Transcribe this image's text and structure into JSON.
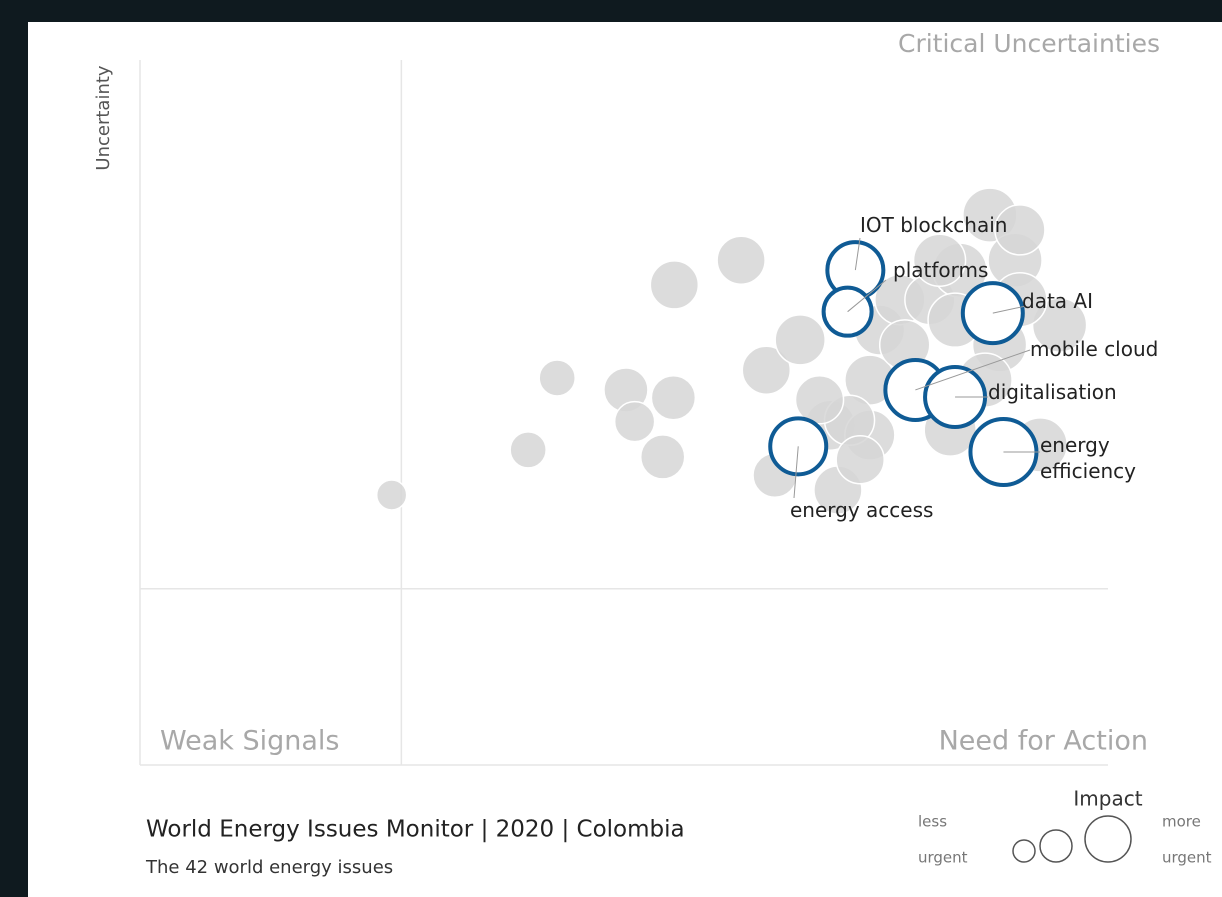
{
  "chart_data": {
    "type": "bubble",
    "title": "World Energy Issues Monitor | 2020 | Colombia",
    "subtitle": "The 42 world energy issues",
    "y_label": "Uncertainty",
    "quadrants": {
      "top_right": "Critical Uncertainties",
      "bottom_left": "Weak Signals",
      "bottom_right": "Need for Action"
    },
    "size_legend": {
      "title": "Impact",
      "low": [
        "less",
        "urgent"
      ],
      "high": [
        "more",
        "urgent"
      ]
    },
    "xlim": [
      0,
      100
    ],
    "ylim": [
      0,
      100
    ],
    "quadrant_lines": {
      "x": 27,
      "y": 25
    },
    "colors": {
      "default": "#d6d6d6",
      "highlight": "#0f5b95"
    },
    "points": [
      {
        "x": 26.0,
        "y": 38.3,
        "size": 15
      },
      {
        "x": 40.1,
        "y": 44.7,
        "size": 18
      },
      {
        "x": 43.1,
        "y": 54.9,
        "size": 18
      },
      {
        "x": 50.2,
        "y": 53.2,
        "size": 22
      },
      {
        "x": 51.1,
        "y": 48.7,
        "size": 20
      },
      {
        "x": 55.1,
        "y": 52.1,
        "size": 22
      },
      {
        "x": 54.0,
        "y": 43.7,
        "size": 22
      },
      {
        "x": 55.2,
        "y": 68.1,
        "size": 24
      },
      {
        "x": 62.1,
        "y": 71.6,
        "size": 24
      },
      {
        "x": 64.7,
        "y": 56.0,
        "size": 24
      },
      {
        "x": 68.2,
        "y": 60.3,
        "size": 25
      },
      {
        "x": 65.6,
        "y": 41.1,
        "size": 22
      },
      {
        "x": 71.3,
        "y": 48.2,
        "size": 25
      },
      {
        "x": 72.1,
        "y": 39.0,
        "size": 24
      },
      {
        "x": 75.4,
        "y": 46.8,
        "size": 25
      },
      {
        "x": 76.4,
        "y": 61.7,
        "size": 25
      },
      {
        "x": 78.5,
        "y": 66.0,
        "size": 25
      },
      {
        "x": 81.6,
        "y": 66.0,
        "size": 25
      },
      {
        "x": 84.7,
        "y": 70.2,
        "size": 27
      },
      {
        "x": 87.8,
        "y": 78.0,
        "size": 27
      },
      {
        "x": 90.4,
        "y": 71.6,
        "size": 27
      },
      {
        "x": 95.0,
        "y": 62.4,
        "size": 27
      },
      {
        "x": 93.0,
        "y": 45.4,
        "size": 27
      },
      {
        "x": 88.8,
        "y": 59.6,
        "size": 27
      },
      {
        "x": 84.2,
        "y": 63.1,
        "size": 27
      },
      {
        "x": 75.4,
        "y": 54.6,
        "size": 25
      },
      {
        "x": 73.3,
        "y": 48.9,
        "size": 25
      },
      {
        "x": 90.9,
        "y": 75.9,
        "size": 25
      },
      {
        "x": 79.0,
        "y": 59.6,
        "size": 25
      },
      {
        "x": 87.3,
        "y": 54.6,
        "size": 27
      },
      {
        "x": 90.9,
        "y": 66.0,
        "size": 27
      },
      {
        "x": 82.6,
        "y": 71.6,
        "size": 26
      },
      {
        "x": 70.2,
        "y": 51.8,
        "size": 24
      },
      {
        "x": 74.4,
        "y": 43.3,
        "size": 24
      },
      {
        "x": 83.7,
        "y": 47.5,
        "size": 26
      },
      {
        "x": 73.9,
        "y": 70.2,
        "size": 28,
        "label": "IOT blockchain"
      },
      {
        "x": 73.1,
        "y": 64.3,
        "size": 24,
        "label": "platforms"
      },
      {
        "x": 88.1,
        "y": 64.1,
        "size": 30,
        "label": "data AI"
      },
      {
        "x": 80.1,
        "y": 53.2,
        "size": 30,
        "label": "mobile cloud"
      },
      {
        "x": 84.2,
        "y": 52.2,
        "size": 30,
        "label": "digitalisation"
      },
      {
        "x": 89.2,
        "y": 44.4,
        "size": 33,
        "label": "energy efficiency"
      },
      {
        "x": 68.0,
        "y": 45.2,
        "size": 28,
        "label": "energy access"
      }
    ]
  }
}
